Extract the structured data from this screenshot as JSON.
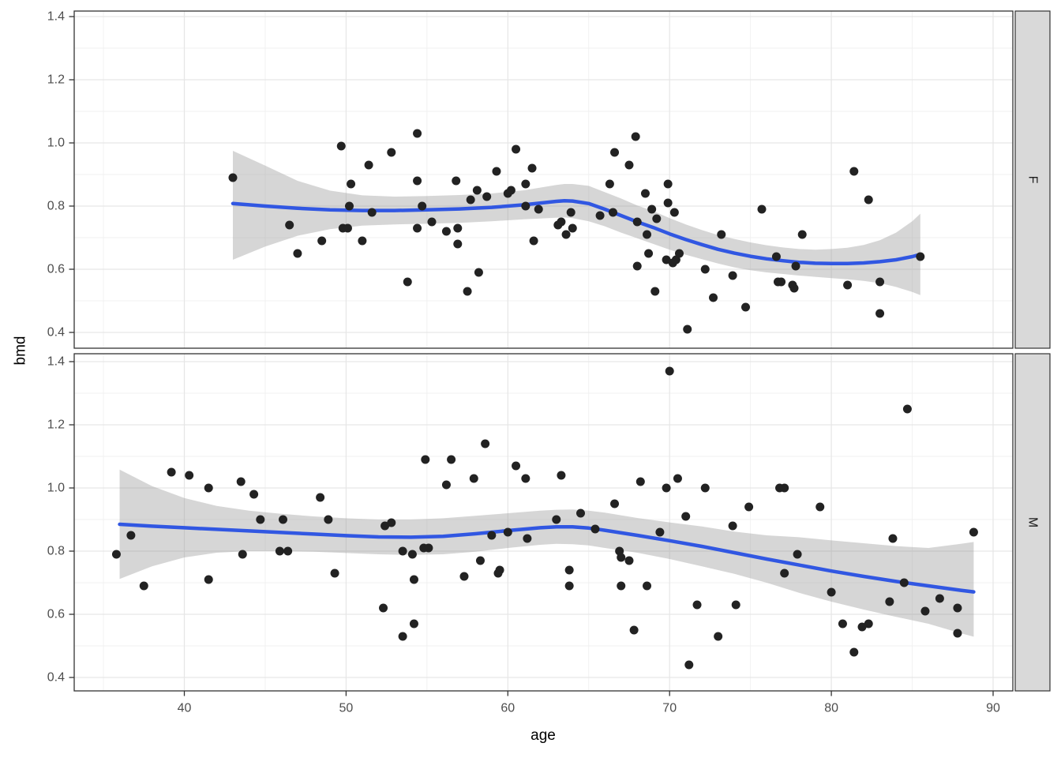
{
  "chart_data": {
    "type": "scatter",
    "title": "",
    "xlabel": "age",
    "ylabel": "bmd",
    "x_ticks": [
      40,
      50,
      60,
      70,
      80,
      90
    ],
    "x_minor": [
      35,
      45,
      55,
      65,
      75,
      85
    ],
    "y_ticks": [
      1.4,
      1.2,
      1.0,
      0.8,
      0.6,
      0.4
    ],
    "y_minor": [
      1.3,
      1.1,
      0.9,
      0.7,
      0.5
    ],
    "x_range": [
      33.2,
      91.2
    ],
    "y_range": [
      0.35,
      1.42
    ],
    "grid": true,
    "legend_position": "none",
    "facet_layout": "rows-right-strips",
    "facets": [
      {
        "label": "F",
        "points": [
          [
            43,
            0.89
          ],
          [
            46.5,
            0.74
          ],
          [
            47,
            0.65
          ],
          [
            48.5,
            0.69
          ],
          [
            49.7,
            0.99
          ],
          [
            49.8,
            0.73
          ],
          [
            50.1,
            0.73
          ],
          [
            50.2,
            0.8
          ],
          [
            50.3,
            0.87
          ],
          [
            51,
            0.69
          ],
          [
            51.4,
            0.93
          ],
          [
            51.6,
            0.78
          ],
          [
            52.8,
            0.97
          ],
          [
            53.8,
            0.56
          ],
          [
            54.4,
            1.03
          ],
          [
            54.4,
            0.88
          ],
          [
            54.7,
            0.8
          ],
          [
            54.4,
            0.73
          ],
          [
            55.3,
            0.75
          ],
          [
            56.2,
            0.72
          ],
          [
            56.8,
            0.88
          ],
          [
            56.9,
            0.73
          ],
          [
            56.9,
            0.68
          ],
          [
            57.5,
            0.53
          ],
          [
            57.7,
            0.82
          ],
          [
            58.1,
            0.85
          ],
          [
            58.2,
            0.59
          ],
          [
            58.7,
            0.83
          ],
          [
            59.3,
            0.91
          ],
          [
            60,
            0.84
          ],
          [
            60.2,
            0.85
          ],
          [
            60.5,
            0.98
          ],
          [
            61.1,
            0.87
          ],
          [
            61.1,
            0.8
          ],
          [
            61.5,
            0.92
          ],
          [
            61.6,
            0.69
          ],
          [
            61.9,
            0.79
          ],
          [
            63.1,
            0.74
          ],
          [
            63.3,
            0.75
          ],
          [
            63.6,
            0.71
          ],
          [
            63.9,
            0.78
          ],
          [
            64,
            0.73
          ],
          [
            65.7,
            0.77
          ],
          [
            66.3,
            0.87
          ],
          [
            66.5,
            0.78
          ],
          [
            66.6,
            0.97
          ],
          [
            67.5,
            0.93
          ],
          [
            67.9,
            1.02
          ],
          [
            68,
            0.75
          ],
          [
            68,
            0.61
          ],
          [
            68.5,
            0.84
          ],
          [
            68.6,
            0.71
          ],
          [
            68.7,
            0.65
          ],
          [
            68.9,
            0.79
          ],
          [
            69.1,
            0.53
          ],
          [
            69.2,
            0.76
          ],
          [
            69.8,
            0.63
          ],
          [
            69.9,
            0.87
          ],
          [
            69.9,
            0.81
          ],
          [
            70.2,
            0.62
          ],
          [
            70.3,
            0.78
          ],
          [
            70.4,
            0.63
          ],
          [
            70.6,
            0.65
          ],
          [
            71.1,
            0.41
          ],
          [
            72.2,
            0.6
          ],
          [
            72.7,
            0.51
          ],
          [
            73.2,
            0.71
          ],
          [
            73.9,
            0.58
          ],
          [
            74.7,
            0.48
          ],
          [
            75.7,
            0.79
          ],
          [
            76.6,
            0.64
          ],
          [
            76.7,
            0.56
          ],
          [
            76.9,
            0.56
          ],
          [
            77.6,
            0.55
          ],
          [
            77.7,
            0.54
          ],
          [
            77.8,
            0.61
          ],
          [
            78.2,
            0.71
          ],
          [
            81,
            0.55
          ],
          [
            81.4,
            0.91
          ],
          [
            82.3,
            0.82
          ],
          [
            83,
            0.56
          ],
          [
            83,
            0.46
          ],
          [
            85.5,
            0.64
          ]
        ],
        "smooth": {
          "x": [
            43,
            45,
            47,
            49,
            51,
            53,
            55,
            57,
            59,
            61,
            63,
            63.5,
            64,
            65,
            66,
            67,
            68,
            69,
            70,
            71,
            72,
            73,
            74,
            75,
            76,
            77,
            78,
            79,
            80,
            81,
            82,
            83,
            84,
            85,
            85.5
          ],
          "y": [
            0.808,
            0.8,
            0.793,
            0.788,
            0.786,
            0.786,
            0.788,
            0.791,
            0.796,
            0.804,
            0.815,
            0.817,
            0.816,
            0.808,
            0.79,
            0.77,
            0.75,
            0.732,
            0.712,
            0.694,
            0.678,
            0.663,
            0.651,
            0.641,
            0.633,
            0.627,
            0.622,
            0.619,
            0.618,
            0.618,
            0.62,
            0.624,
            0.63,
            0.64,
            0.647
          ],
          "lower": [
            0.63,
            0.672,
            0.706,
            0.727,
            0.738,
            0.742,
            0.744,
            0.747,
            0.752,
            0.758,
            0.763,
            0.764,
            0.762,
            0.752,
            0.736,
            0.716,
            0.698,
            0.68,
            0.662,
            0.646,
            0.632,
            0.618,
            0.606,
            0.597,
            0.59,
            0.585,
            0.58,
            0.576,
            0.572,
            0.568,
            0.563,
            0.556,
            0.544,
            0.528,
            0.518
          ],
          "upper": [
            0.975,
            0.928,
            0.88,
            0.849,
            0.834,
            0.83,
            0.832,
            0.835,
            0.84,
            0.85,
            0.867,
            0.87,
            0.87,
            0.864,
            0.844,
            0.824,
            0.802,
            0.784,
            0.762,
            0.742,
            0.724,
            0.708,
            0.696,
            0.685,
            0.676,
            0.669,
            0.664,
            0.662,
            0.664,
            0.668,
            0.677,
            0.692,
            0.716,
            0.752,
            0.776
          ]
        }
      },
      {
        "label": "M",
        "points": [
          [
            35.8,
            0.79
          ],
          [
            36.7,
            0.85
          ],
          [
            37.5,
            0.69
          ],
          [
            39.2,
            1.05
          ],
          [
            40.3,
            1.04
          ],
          [
            41.5,
            1
          ],
          [
            41.5,
            0.71
          ],
          [
            43.5,
            1.02
          ],
          [
            43.6,
            0.79
          ],
          [
            44.3,
            0.98
          ],
          [
            44.7,
            0.9
          ],
          [
            45.9,
            0.8
          ],
          [
            46.1,
            0.9
          ],
          [
            46.4,
            0.8
          ],
          [
            48.4,
            0.97
          ],
          [
            48.9,
            0.9
          ],
          [
            49.3,
            0.73
          ],
          [
            52.3,
            0.62
          ],
          [
            52.4,
            0.88
          ],
          [
            52.8,
            0.89
          ],
          [
            53.5,
            0.8
          ],
          [
            53.5,
            0.53
          ],
          [
            54.1,
            0.79
          ],
          [
            54.2,
            0.71
          ],
          [
            54.2,
            0.57
          ],
          [
            54.8,
            0.81
          ],
          [
            54.9,
            1.09
          ],
          [
            55.1,
            0.81
          ],
          [
            56.2,
            1.01
          ],
          [
            56.5,
            1.09
          ],
          [
            57.3,
            0.72
          ],
          [
            57.9,
            1.03
          ],
          [
            58.3,
            0.77
          ],
          [
            58.6,
            1.14
          ],
          [
            59,
            0.85
          ],
          [
            59.4,
            0.73
          ],
          [
            59.5,
            0.74
          ],
          [
            60,
            0.86
          ],
          [
            60.5,
            1.07
          ],
          [
            61.1,
            1.03
          ],
          [
            61.2,
            0.84
          ],
          [
            63,
            0.9
          ],
          [
            63.3,
            1.04
          ],
          [
            63.8,
            0.74
          ],
          [
            63.8,
            0.69
          ],
          [
            64.5,
            0.92
          ],
          [
            65.4,
            0.87
          ],
          [
            66.6,
            0.95
          ],
          [
            66.9,
            0.8
          ],
          [
            67,
            0.78
          ],
          [
            67,
            0.69
          ],
          [
            67.5,
            0.77
          ],
          [
            67.8,
            0.55
          ],
          [
            68.2,
            1.02
          ],
          [
            68.6,
            0.69
          ],
          [
            69.4,
            0.86
          ],
          [
            69.8,
            1
          ],
          [
            70,
            1.37
          ],
          [
            70.5,
            1.03
          ],
          [
            71,
            0.91
          ],
          [
            71.2,
            0.44
          ],
          [
            71.7,
            0.63
          ],
          [
            72.2,
            1
          ],
          [
            73,
            0.53
          ],
          [
            73.9,
            0.88
          ],
          [
            74.1,
            0.63
          ],
          [
            74.9,
            0.94
          ],
          [
            76.8,
            1
          ],
          [
            77.1,
            1
          ],
          [
            77.1,
            0.73
          ],
          [
            77.9,
            0.79
          ],
          [
            79.3,
            0.94
          ],
          [
            80,
            0.67
          ],
          [
            80.7,
            0.57
          ],
          [
            81.4,
            0.48
          ],
          [
            81.9,
            0.56
          ],
          [
            82.3,
            0.57
          ],
          [
            83.6,
            0.64
          ],
          [
            83.8,
            0.84
          ],
          [
            84.5,
            0.7
          ],
          [
            84.7,
            1.25
          ],
          [
            85.8,
            0.61
          ],
          [
            86.7,
            0.65
          ],
          [
            87.8,
            0.62
          ],
          [
            87.8,
            0.54
          ],
          [
            88.8,
            0.86
          ]
        ],
        "smooth": {
          "x": [
            36,
            38,
            40,
            42,
            44,
            46,
            48,
            50,
            52,
            54,
            56,
            58,
            60,
            62,
            63,
            64,
            65,
            66,
            68,
            70,
            72,
            74,
            76,
            78,
            80,
            82,
            84,
            86,
            88,
            88.8
          ],
          "y": [
            0.885,
            0.879,
            0.874,
            0.869,
            0.864,
            0.859,
            0.854,
            0.849,
            0.845,
            0.844,
            0.847,
            0.855,
            0.865,
            0.874,
            0.877,
            0.877,
            0.873,
            0.866,
            0.85,
            0.833,
            0.815,
            0.795,
            0.775,
            0.756,
            0.737,
            0.72,
            0.704,
            0.69,
            0.676,
            0.671
          ],
          "lower": [
            0.712,
            0.752,
            0.78,
            0.795,
            0.8,
            0.8,
            0.798,
            0.794,
            0.79,
            0.788,
            0.79,
            0.798,
            0.81,
            0.82,
            0.823,
            0.822,
            0.818,
            0.81,
            0.795,
            0.775,
            0.752,
            0.728,
            0.7,
            0.668,
            0.64,
            0.615,
            0.592,
            0.57,
            0.54,
            0.529
          ],
          "upper": [
            1.058,
            1.006,
            0.968,
            0.943,
            0.928,
            0.918,
            0.91,
            0.904,
            0.9,
            0.9,
            0.904,
            0.912,
            0.92,
            0.928,
            0.931,
            0.932,
            0.928,
            0.922,
            0.905,
            0.891,
            0.878,
            0.862,
            0.85,
            0.844,
            0.834,
            0.825,
            0.816,
            0.81,
            0.823,
            0.829
          ]
        }
      }
    ]
  },
  "style": {
    "background": "#FFFFFF",
    "panel_fill": "#FFFFFF",
    "panel_border": "#333333",
    "grid_major": "#E6E6E6",
    "grid_minor": "#F0F0F0",
    "band_fill": "#999999",
    "band_opacity": 0.4,
    "smooth_line": "#3157E2",
    "point_fill": "#222222",
    "strip_fill": "#D9D9D9",
    "strip_border": "#333333",
    "strip_text": "#1A1A1A",
    "tick_label": "#4D4D4D",
    "tick_mark": "#333333",
    "axis_title": "#000000"
  }
}
